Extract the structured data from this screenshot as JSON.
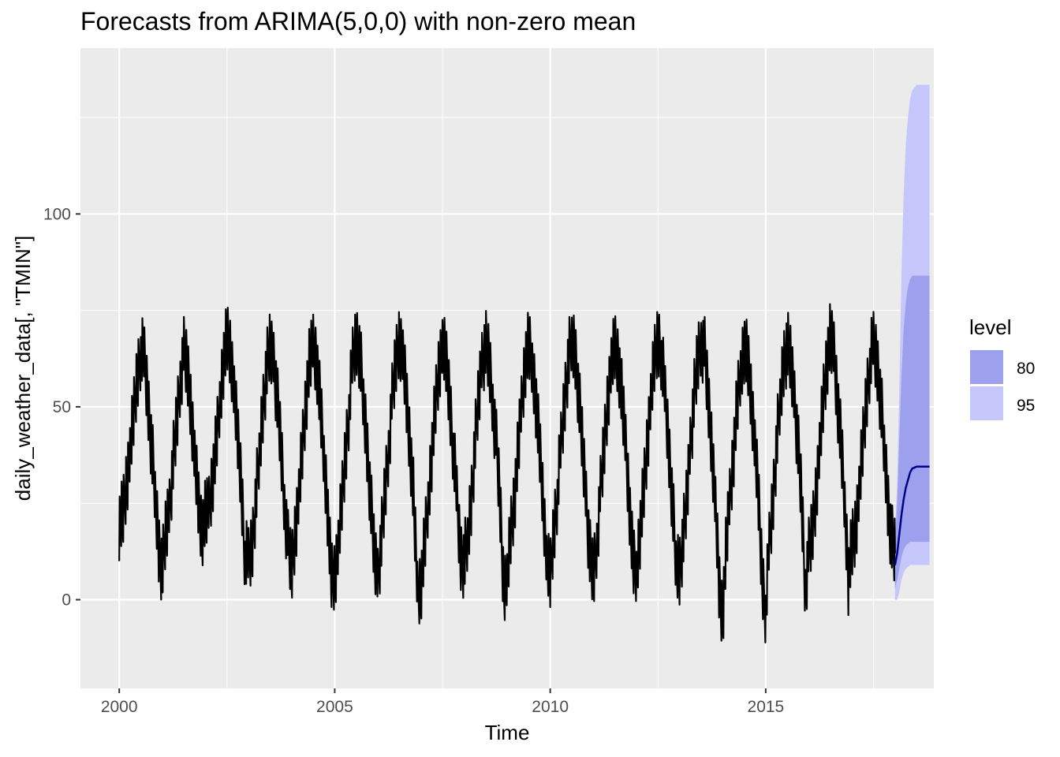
{
  "chart_data": {
    "type": "line",
    "title": "Forecasts from ARIMA(5,0,0) with non-zero mean",
    "xlabel": "Time",
    "ylabel": "daily_weather_data[, \"TMIN\"]",
    "xlim": [
      1999.1,
      2018.9
    ],
    "ylim": [
      -23,
      143
    ],
    "x_ticks": [
      2000,
      2005,
      2010,
      2015
    ],
    "x_tick_labels": [
      "2000",
      "2005",
      "2010",
      "2015"
    ],
    "y_ticks": [
      0,
      50,
      100
    ],
    "y_tick_labels": [
      "0",
      "50",
      "100"
    ],
    "grid": true,
    "legend_position": "right",
    "legend": {
      "title": "level",
      "items": [
        {
          "label": "80",
          "color": "#9da0ec"
        },
        {
          "label": "95",
          "color": "#c5c7fa"
        }
      ]
    },
    "colors": {
      "panel_background": "#ebebeb",
      "grid_major": "#ffffff",
      "observed_line": "#000000",
      "forecast_line": "#00008b",
      "band_80": "#9da0ec",
      "band_95": "#c5c7fa"
    },
    "series": [
      {
        "role": "observed",
        "description_only_for_script": "",
        "x": [
          2000.0,
          2000.083,
          2000.167,
          2000.25,
          2000.333,
          2000.417,
          2000.5,
          2000.583,
          2000.667,
          2000.75,
          2000.833,
          2000.917,
          2001.0,
          2001.083,
          2001.167,
          2001.25,
          2001.333,
          2001.417,
          2001.5,
          2001.583,
          2001.667,
          2001.75,
          2001.833,
          2001.917,
          2002.0,
          2002.083,
          2002.167,
          2002.25,
          2002.333,
          2002.417,
          2002.5,
          2002.583,
          2002.667,
          2002.75,
          2002.833,
          2002.917,
          2003.0,
          2003.083,
          2003.167,
          2003.25,
          2003.333,
          2003.417,
          2003.5,
          2003.583,
          2003.667,
          2003.75,
          2003.833,
          2003.917,
          2004.0,
          2004.083,
          2004.167,
          2004.25,
          2004.333,
          2004.417,
          2004.5,
          2004.583,
          2004.667,
          2004.75,
          2004.833,
          2004.917,
          2005.0,
          2005.083,
          2005.167,
          2005.25,
          2005.333,
          2005.417,
          2005.5,
          2005.583,
          2005.667,
          2005.75,
          2005.833,
          2005.917,
          2006.0,
          2006.083,
          2006.167,
          2006.25,
          2006.333,
          2006.417,
          2006.5,
          2006.583,
          2006.667,
          2006.75,
          2006.833,
          2006.917,
          2007.0,
          2007.083,
          2007.167,
          2007.25,
          2007.333,
          2007.417,
          2007.5,
          2007.583,
          2007.667,
          2007.75,
          2007.833,
          2007.917,
          2008.0,
          2008.083,
          2008.167,
          2008.25,
          2008.333,
          2008.417,
          2008.5,
          2008.583,
          2008.667,
          2008.75,
          2008.833,
          2008.917,
          2009.0,
          2009.083,
          2009.167,
          2009.25,
          2009.333,
          2009.417,
          2009.5,
          2009.583,
          2009.667,
          2009.75,
          2009.833,
          2009.917,
          2010.0,
          2010.083,
          2010.167,
          2010.25,
          2010.333,
          2010.417,
          2010.5,
          2010.583,
          2010.667,
          2010.75,
          2010.833,
          2010.917,
          2011.0,
          2011.083,
          2011.167,
          2011.25,
          2011.333,
          2011.417,
          2011.5,
          2011.583,
          2011.667,
          2011.75,
          2011.833,
          2011.917,
          2012.0,
          2012.083,
          2012.167,
          2012.25,
          2012.333,
          2012.417,
          2012.5,
          2012.583,
          2012.667,
          2012.75,
          2012.833,
          2012.917,
          2013.0,
          2013.083,
          2013.167,
          2013.25,
          2013.333,
          2013.417,
          2013.5,
          2013.583,
          2013.667,
          2013.75,
          2013.833,
          2013.917,
          2014.0,
          2014.083,
          2014.167,
          2014.25,
          2014.333,
          2014.417,
          2014.5,
          2014.583,
          2014.667,
          2014.75,
          2014.833,
          2014.917,
          2015.0,
          2015.083,
          2015.167,
          2015.25,
          2015.333,
          2015.417,
          2015.5,
          2015.583,
          2015.667,
          2015.75,
          2015.833,
          2015.917,
          2016.0,
          2016.083,
          2016.167,
          2016.25,
          2016.333,
          2016.417,
          2016.5,
          2016.583,
          2016.667,
          2016.75,
          2016.833,
          2016.917,
          2017.0,
          2017.083,
          2017.167,
          2017.25,
          2017.333,
          2017.417,
          2017.5,
          2017.583,
          2017.667,
          2017.75,
          2017.833,
          2017.917,
          2018.0
        ],
        "y": [
          20,
          22,
          30,
          38,
          48,
          58,
          65,
          62,
          52,
          40,
          28,
          14,
          8,
          18,
          24,
          36,
          46,
          58,
          64,
          60,
          50,
          38,
          26,
          18,
          22,
          24,
          32,
          40,
          52,
          62,
          68,
          64,
          54,
          42,
          30,
          12,
          10,
          14,
          26,
          38,
          50,
          60,
          66,
          62,
          52,
          40,
          26,
          14,
          8,
          18,
          28,
          40,
          52,
          62,
          66,
          62,
          50,
          38,
          24,
          6,
          6,
          14,
          26,
          38,
          50,
          62,
          68,
          64,
          52,
          40,
          26,
          12,
          6,
          16,
          28,
          40,
          52,
          62,
          68,
          64,
          52,
          40,
          26,
          2,
          4,
          14,
          26,
          38,
          50,
          60,
          66,
          62,
          52,
          40,
          26,
          12,
          10,
          16,
          26,
          40,
          52,
          62,
          66,
          62,
          52,
          40,
          26,
          4,
          6,
          18,
          26,
          38,
          50,
          62,
          66,
          62,
          52,
          40,
          26,
          10,
          6,
          18,
          28,
          40,
          52,
          62,
          68,
          64,
          52,
          40,
          26,
          12,
          6,
          16,
          28,
          40,
          52,
          62,
          66,
          62,
          52,
          40,
          26,
          10,
          8,
          18,
          28,
          40,
          52,
          62,
          68,
          64,
          52,
          40,
          26,
          10,
          8,
          16,
          26,
          40,
          52,
          62,
          68,
          64,
          52,
          40,
          26,
          4,
          -4,
          14,
          26,
          38,
          50,
          60,
          66,
          62,
          52,
          40,
          26,
          6,
          -2,
          14,
          26,
          40,
          52,
          62,
          66,
          62,
          52,
          40,
          26,
          4,
          12,
          18,
          28,
          40,
          52,
          62,
          68,
          64,
          52,
          40,
          26,
          6,
          14,
          18,
          28,
          40,
          52,
          62,
          66,
          62,
          52,
          40,
          26,
          16,
          12
        ]
      },
      {
        "role": "forecast",
        "x": [
          2018.0,
          2018.05,
          2018.1,
          2018.15,
          2018.2,
          2018.25,
          2018.3,
          2018.35,
          2018.4,
          2018.5,
          2018.6,
          2018.7,
          2018.8
        ],
        "y": [
          9,
          12,
          17,
          22,
          26,
          29,
          31,
          33,
          34,
          34.5,
          34.5,
          34.5,
          34.5
        ]
      }
    ],
    "bands": [
      {
        "level": "95",
        "x": [
          2018.0,
          2018.05,
          2018.1,
          2018.15,
          2018.2,
          2018.25,
          2018.3,
          2018.35,
          2018.4,
          2018.5,
          2018.6,
          2018.7,
          2018.8
        ],
        "lower": [
          0,
          0,
          2,
          5,
          7,
          8,
          8.5,
          9,
          9,
          9,
          9,
          9,
          9
        ],
        "upper": [
          18,
          30,
          55,
          85,
          105,
          118,
          125,
          130,
          132,
          133.5,
          133.5,
          133.5,
          133.5
        ]
      },
      {
        "level": "80",
        "x": [
          2018.0,
          2018.05,
          2018.1,
          2018.15,
          2018.2,
          2018.25,
          2018.3,
          2018.35,
          2018.4,
          2018.5,
          2018.6,
          2018.7,
          2018.8
        ],
        "lower": [
          3,
          5,
          8,
          11,
          13,
          14,
          14.5,
          15,
          15,
          15,
          15,
          15,
          15
        ],
        "upper": [
          15,
          25,
          42,
          58,
          70,
          77,
          81,
          83,
          84,
          84,
          84,
          84,
          84
        ]
      }
    ]
  }
}
